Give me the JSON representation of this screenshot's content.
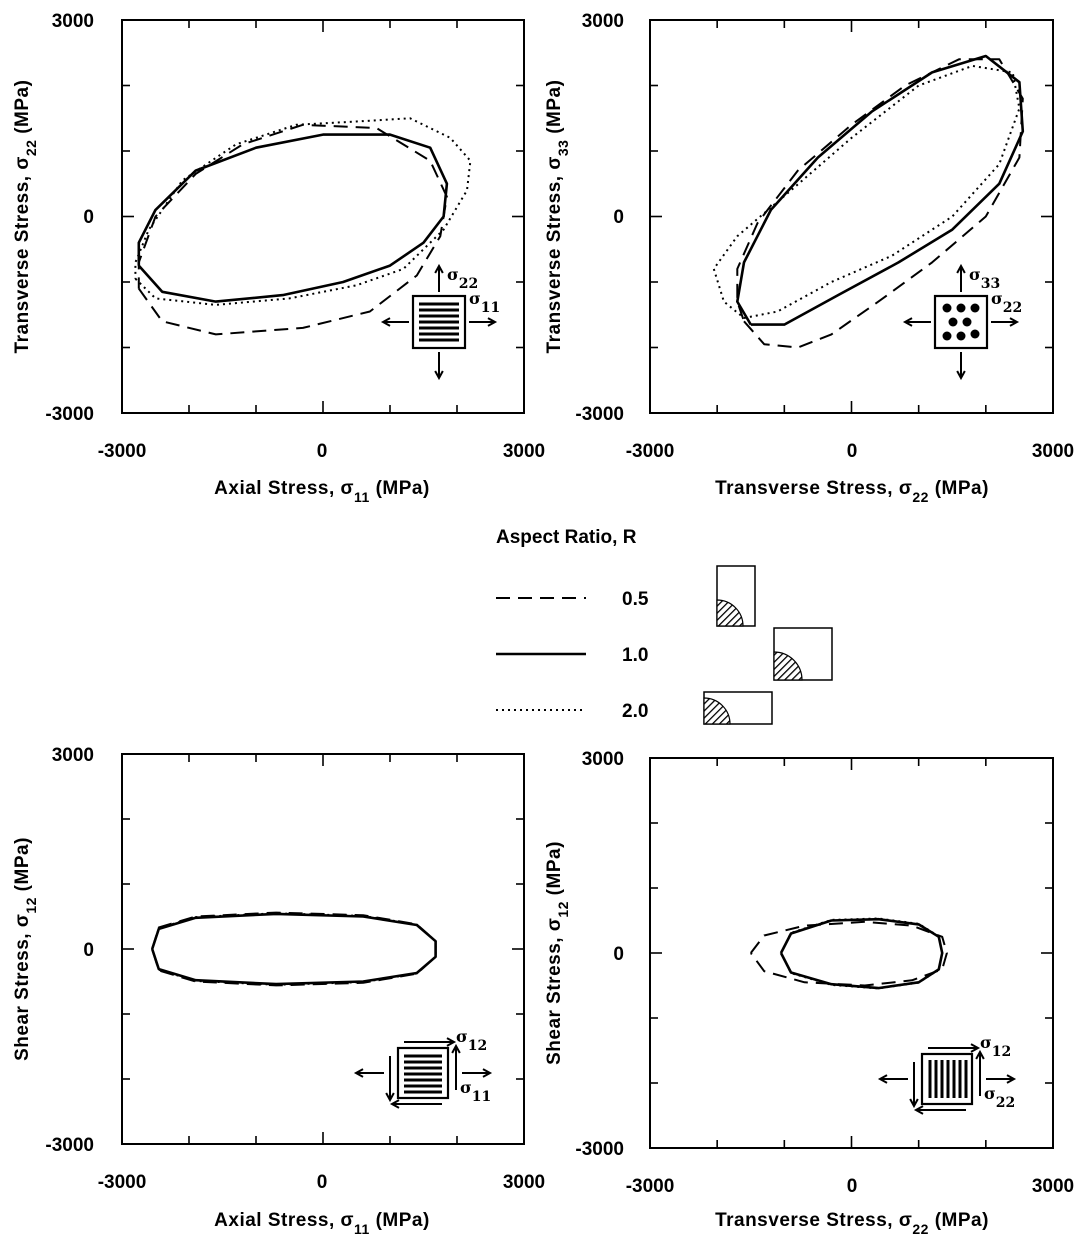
{
  "chart_data": [
    {
      "type": "line",
      "xlabel": "Axial Stress, σ11 (MPa)",
      "xlabel_parts": {
        "main": "Axial Stress, σ",
        "sub": "11",
        "unit": " (MPa)"
      },
      "ylabel": "Transverse Stress, σ22 (MPa)",
      "ylabel_parts": {
        "main": "Transverse Stress, σ",
        "sub": "22",
        "unit": " (MPa)"
      },
      "xlim": [
        -3000,
        3000
      ],
      "ylim": [
        -3000,
        3000
      ],
      "x_tick_labels": [
        "-3000",
        "0",
        "3000"
      ],
      "y_tick_labels": [
        "3000",
        "0",
        "-3000"
      ],
      "inset_labels": {
        "vertical": {
          "main": "σ",
          "sub": "22"
        },
        "horizontal": {
          "main": "σ",
          "sub": "11"
        }
      },
      "series": [
        {
          "name": "0.5",
          "style": "dashed",
          "points": [
            [
              -2750,
              -1100
            ],
            [
              -2400,
              -1600
            ],
            [
              -1600,
              -1800
            ],
            [
              -300,
              -1700
            ],
            [
              700,
              -1450
            ],
            [
              1400,
              -900
            ],
            [
              1750,
              -300
            ],
            [
              1850,
              300
            ],
            [
              1600,
              850
            ],
            [
              800,
              1350
            ],
            [
              -300,
              1400
            ],
            [
              -1200,
              1100
            ],
            [
              -1900,
              650
            ],
            [
              -2500,
              0
            ],
            [
              -2750,
              -700
            ],
            [
              -2750,
              -1100
            ]
          ]
        },
        {
          "name": "1.0",
          "style": "solid",
          "points": [
            [
              -2750,
              -750
            ],
            [
              -2400,
              -1150
            ],
            [
              -1600,
              -1300
            ],
            [
              -600,
              -1200
            ],
            [
              300,
              -1000
            ],
            [
              1000,
              -750
            ],
            [
              1500,
              -400
            ],
            [
              1800,
              0
            ],
            [
              1850,
              500
            ],
            [
              1600,
              1050
            ],
            [
              1000,
              1250
            ],
            [
              0,
              1250
            ],
            [
              -1000,
              1050
            ],
            [
              -1900,
              700
            ],
            [
              -2500,
              100
            ],
            [
              -2750,
              -400
            ],
            [
              -2750,
              -750
            ]
          ]
        },
        {
          "name": "2.0",
          "style": "dotted",
          "points": [
            [
              -2800,
              -950
            ],
            [
              -2500,
              -1250
            ],
            [
              -1600,
              -1350
            ],
            [
              -500,
              -1250
            ],
            [
              500,
              -1050
            ],
            [
              1200,
              -800
            ],
            [
              1800,
              -200
            ],
            [
              2150,
              400
            ],
            [
              2200,
              850
            ],
            [
              1900,
              1200
            ],
            [
              1300,
              1500
            ],
            [
              500,
              1450
            ],
            [
              -400,
              1400
            ],
            [
              -1300,
              1100
            ],
            [
              -2100,
              550
            ],
            [
              -2600,
              -200
            ],
            [
              -2800,
              -700
            ],
            [
              -2800,
              -950
            ]
          ]
        }
      ]
    },
    {
      "type": "line",
      "xlabel": "Transverse Stress, σ22 (MPa)",
      "xlabel_parts": {
        "main": "Transverse Stress, σ",
        "sub": "22",
        "unit": " (MPa)"
      },
      "ylabel": "Transverse Stress, σ33 (MPa)",
      "ylabel_parts": {
        "main": "Transverse Stress, σ",
        "sub": "33",
        "unit": " (MPa)"
      },
      "xlim": [
        -3000,
        3000
      ],
      "ylim": [
        -3000,
        3000
      ],
      "x_tick_labels": [
        "-3000",
        "0",
        "3000"
      ],
      "y_tick_labels": [
        "3000",
        "0",
        "-3000"
      ],
      "inset_labels": {
        "vertical": {
          "main": "σ",
          "sub": "33"
        },
        "horizontal": {
          "main": "σ",
          "sub": "22"
        }
      },
      "series": [
        {
          "name": "0.5",
          "style": "dashed",
          "points": [
            [
              -1600,
              -1600
            ],
            [
              -1300,
              -1950
            ],
            [
              -800,
              -2000
            ],
            [
              -300,
              -1800
            ],
            [
              400,
              -1300
            ],
            [
              1200,
              -700
            ],
            [
              2000,
              0
            ],
            [
              2500,
              900
            ],
            [
              2550,
              1800
            ],
            [
              2200,
              2400
            ],
            [
              1600,
              2400
            ],
            [
              800,
              2000
            ],
            [
              0,
              1400
            ],
            [
              -800,
              700
            ],
            [
              -1400,
              -100
            ],
            [
              -1700,
              -800
            ],
            [
              -1700,
              -1300
            ],
            [
              -1600,
              -1600
            ]
          ]
        },
        {
          "name": "1.0",
          "style": "solid",
          "points": [
            [
              -1500,
              -1650
            ],
            [
              -1000,
              -1650
            ],
            [
              -200,
              -1200
            ],
            [
              700,
              -700
            ],
            [
              1500,
              -200
            ],
            [
              2200,
              500
            ],
            [
              2550,
              1300
            ],
            [
              2500,
              2050
            ],
            [
              2000,
              2450
            ],
            [
              1200,
              2200
            ],
            [
              300,
              1600
            ],
            [
              -500,
              900
            ],
            [
              -1200,
              100
            ],
            [
              -1600,
              -700
            ],
            [
              -1700,
              -1300
            ],
            [
              -1500,
              -1650
            ]
          ]
        },
        {
          "name": "2.0",
          "style": "dotted",
          "points": [
            [
              -1600,
              -1550
            ],
            [
              -1100,
              -1450
            ],
            [
              -300,
              -1000
            ],
            [
              600,
              -600
            ],
            [
              1500,
              0
            ],
            [
              2200,
              800
            ],
            [
              2500,
              1650
            ],
            [
              2400,
              2200
            ],
            [
              1800,
              2300
            ],
            [
              1000,
              2000
            ],
            [
              0,
              1200
            ],
            [
              -900,
              400
            ],
            [
              -1700,
              -300
            ],
            [
              -2050,
              -800
            ],
            [
              -1900,
              -1300
            ],
            [
              -1600,
              -1550
            ]
          ]
        }
      ]
    },
    {
      "type": "line",
      "xlabel": "Axial Stress, σ11 (MPa)",
      "xlabel_parts": {
        "main": "Axial Stress, σ",
        "sub": "11",
        "unit": " (MPa)"
      },
      "ylabel": "Shear Stress, σ12 (MPa)",
      "ylabel_parts": {
        "main": "Shear Stress, σ",
        "sub": "12",
        "unit": " (MPa)"
      },
      "xlim": [
        -3000,
        3000
      ],
      "ylim": [
        -3000,
        3000
      ],
      "x_tick_labels": [
        "-3000",
        "0",
        "3000"
      ],
      "y_tick_labels": [
        "3000",
        "0",
        "-3000"
      ],
      "inset_labels": {
        "vertical": {
          "main": "σ",
          "sub": "12"
        },
        "horizontal": {
          "main": "σ",
          "sub": "11"
        }
      },
      "series": [
        {
          "name": "0.5",
          "style": "dashed",
          "points": [
            [
              -2550,
              0
            ],
            [
              -2450,
              330
            ],
            [
              -1900,
              500
            ],
            [
              -700,
              560
            ],
            [
              600,
              520
            ],
            [
              1400,
              380
            ],
            [
              1680,
              120
            ],
            [
              1680,
              -120
            ],
            [
              1400,
              -380
            ],
            [
              600,
              -520
            ],
            [
              -700,
              -560
            ],
            [
              -1900,
              -500
            ],
            [
              -2450,
              -330
            ],
            [
              -2550,
              0
            ]
          ]
        },
        {
          "name": "1.0",
          "style": "solid",
          "points": [
            [
              -2550,
              0
            ],
            [
              -2450,
              310
            ],
            [
              -1900,
              480
            ],
            [
              -700,
              540
            ],
            [
              600,
              500
            ],
            [
              1400,
              370
            ],
            [
              1680,
              120
            ],
            [
              1680,
              -120
            ],
            [
              1400,
              -370
            ],
            [
              600,
              -500
            ],
            [
              -700,
              -540
            ],
            [
              -1900,
              -480
            ],
            [
              -2450,
              -310
            ],
            [
              -2550,
              0
            ]
          ]
        },
        {
          "name": "2.0",
          "style": "dotted",
          "points": [
            [
              -2550,
              0
            ],
            [
              -2450,
              320
            ],
            [
              -1900,
              490
            ],
            [
              -700,
              550
            ],
            [
              600,
              510
            ],
            [
              1400,
              375
            ],
            [
              1680,
              120
            ],
            [
              1680,
              -120
            ],
            [
              1400,
              -375
            ],
            [
              600,
              -510
            ],
            [
              -700,
              -550
            ],
            [
              -1900,
              -490
            ],
            [
              -2450,
              -320
            ],
            [
              -2550,
              0
            ]
          ]
        }
      ]
    },
    {
      "type": "line",
      "xlabel": "Transverse Stress, σ22 (MPa)",
      "xlabel_parts": {
        "main": "Transverse Stress, σ",
        "sub": "22",
        "unit": " (MPa)"
      },
      "ylabel": "Shear Stress, σ12 (MPa)",
      "ylabel_parts": {
        "main": "Shear Stress, σ",
        "sub": "12",
        "unit": " (MPa)"
      },
      "xlim": [
        -3000,
        3000
      ],
      "ylim": [
        -3000,
        3000
      ],
      "x_tick_labels": [
        "-3000",
        "0",
        "3000"
      ],
      "y_tick_labels": [
        "3000",
        "0",
        "-3000"
      ],
      "inset_labels": {
        "vertical": {
          "main": "σ",
          "sub": "12"
        },
        "horizontal": {
          "main": "σ",
          "sub": "22"
        }
      },
      "series": [
        {
          "name": "0.5",
          "style": "dashed",
          "points": [
            [
              -1500,
              0
            ],
            [
              -1300,
              270
            ],
            [
              -700,
              420
            ],
            [
              200,
              480
            ],
            [
              900,
              420
            ],
            [
              1350,
              250
            ],
            [
              1420,
              0
            ],
            [
              1350,
              -250
            ],
            [
              900,
              -420
            ],
            [
              200,
              -500
            ],
            [
              -700,
              -450
            ],
            [
              -1300,
              -280
            ],
            [
              -1500,
              0
            ]
          ]
        },
        {
          "name": "1.0",
          "style": "solid",
          "points": [
            [
              -1050,
              0
            ],
            [
              -900,
              300
            ],
            [
              -300,
              500
            ],
            [
              400,
              520
            ],
            [
              1000,
              440
            ],
            [
              1300,
              250
            ],
            [
              1350,
              0
            ],
            [
              1300,
              -250
            ],
            [
              1000,
              -450
            ],
            [
              400,
              -540
            ],
            [
              -300,
              -480
            ],
            [
              -900,
              -300
            ],
            [
              -1050,
              0
            ]
          ]
        },
        {
          "name": "2.0",
          "style": "dotted",
          "points": [
            [
              -1050,
              0
            ],
            [
              -900,
              310
            ],
            [
              -300,
              510
            ],
            [
              400,
              530
            ],
            [
              1000,
              450
            ],
            [
              1300,
              255
            ],
            [
              1350,
              0
            ],
            [
              1300,
              -255
            ],
            [
              1000,
              -455
            ],
            [
              400,
              -545
            ],
            [
              -300,
              -490
            ],
            [
              -900,
              -310
            ],
            [
              -1050,
              0
            ]
          ]
        }
      ]
    }
  ],
  "legend": {
    "title": "Aspect Ratio, R",
    "entries": [
      {
        "label": "0.5",
        "style": "dashed"
      },
      {
        "label": "1.0",
        "style": "solid"
      },
      {
        "label": "2.0",
        "style": "dotted"
      }
    ]
  },
  "colors": {
    "ink": "#000000",
    "background": "#ffffff"
  }
}
